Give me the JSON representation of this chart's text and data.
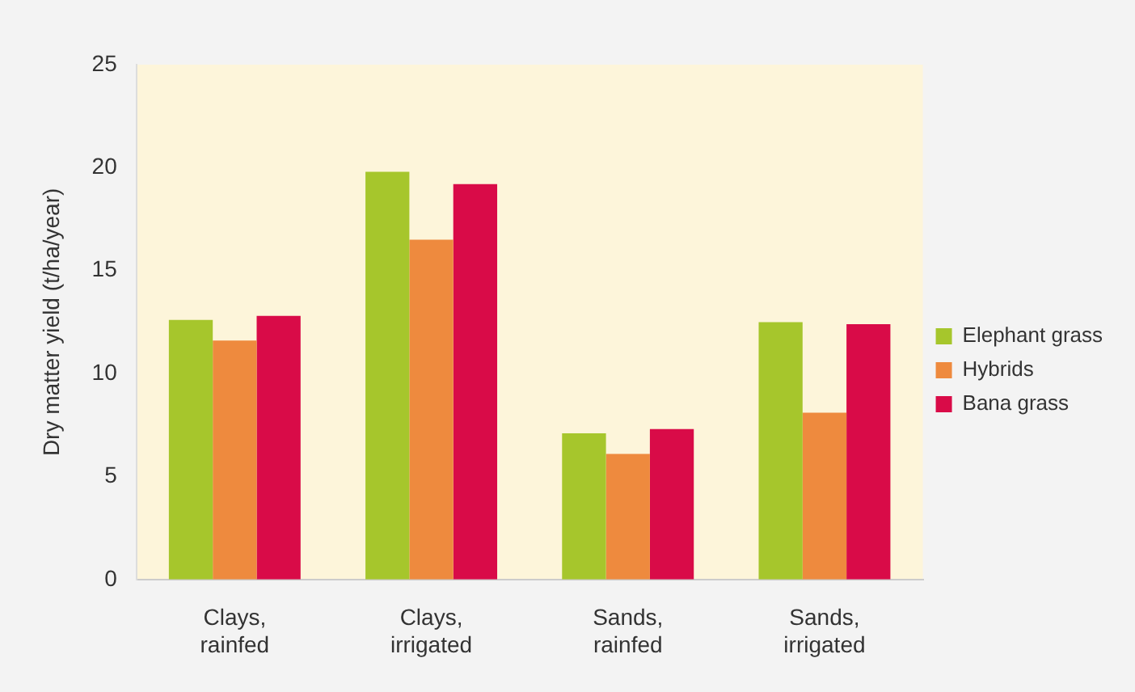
{
  "chart_data": {
    "type": "bar",
    "ylabel": "Dry matter yield (t/ha/year)",
    "categories": [
      "Clays,\nrainfed",
      "Clays,\nirrigated",
      "Sands,\nrainfed",
      "Sands,\nirrigated"
    ],
    "series": [
      {
        "name": "Elephant grass",
        "color": "#a6c62c",
        "values": [
          12.6,
          19.8,
          7.1,
          12.5
        ]
      },
      {
        "name": "Hybrids",
        "color": "#ee8a3e",
        "values": [
          11.6,
          16.5,
          6.1,
          8.1
        ]
      },
      {
        "name": "Bana grass",
        "color": "#d90b48",
        "values": [
          12.8,
          19.2,
          7.3,
          12.4
        ]
      }
    ],
    "ylim": [
      0,
      25
    ],
    "yticks": [
      0,
      5,
      10,
      15,
      20,
      25
    ],
    "grid": false,
    "legend": "right"
  }
}
